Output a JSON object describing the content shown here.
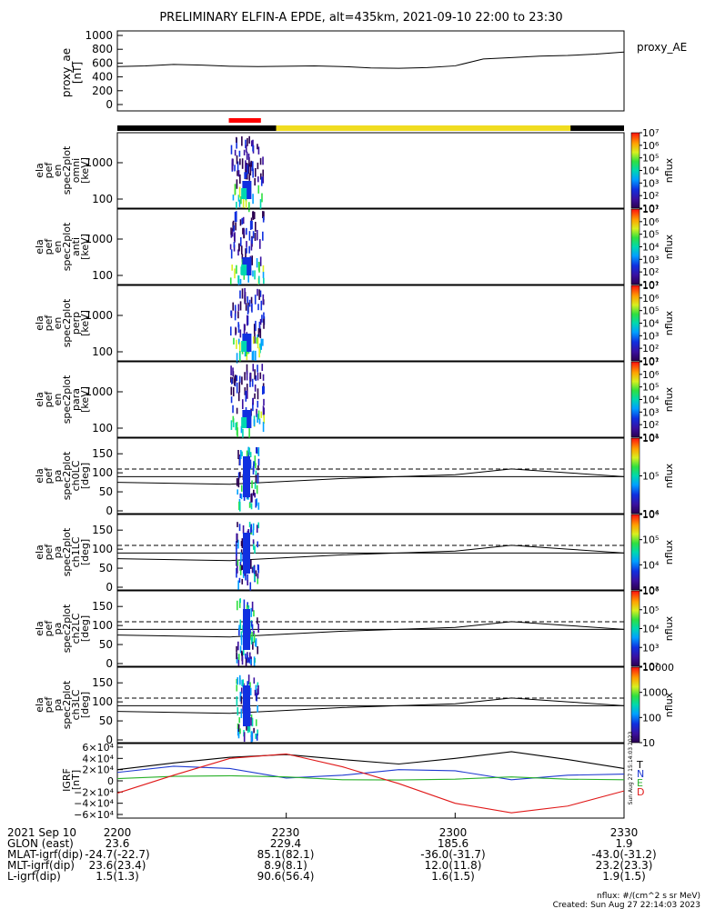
{
  "title": "PRELIMINARY ELFIN-A EPDE, alt=435km, 2021-09-10 22:00 to 23:30",
  "bars": {
    "marker_color": "#ff0000",
    "science_color": "#f0dc20",
    "background_color": "#000000"
  },
  "ae_panel": {
    "ylabel": [
      "proxy_ae",
      "[nT]"
    ],
    "series_name": "proxy_AE",
    "ylim": [
      0,
      1000
    ],
    "ticks": [
      "0",
      "200",
      "400",
      "600",
      "800",
      "1000"
    ]
  },
  "spec_panels": [
    {
      "ylabel": [
        "ela",
        "pef",
        "en",
        "spec2plot",
        "omni",
        "[keV]"
      ],
      "ticks": [
        "100",
        "1000"
      ],
      "cbar_ticks": [
        "10¹",
        "10²",
        "10³",
        "10⁴",
        "10⁵",
        "10⁶",
        "10⁷"
      ],
      "cbar_label": "nflux"
    },
    {
      "ylabel": [
        "ela",
        "pef",
        "en",
        "spec2plot",
        "anti",
        "[keV]"
      ],
      "ticks": [
        "100",
        "1000"
      ],
      "cbar_ticks": [
        "10¹",
        "10²",
        "10³",
        "10⁴",
        "10⁵",
        "10⁶",
        "10⁷"
      ],
      "cbar_label": "nflux"
    },
    {
      "ylabel": [
        "ela",
        "pef",
        "en",
        "spec2plot",
        "perp",
        "[keV]"
      ],
      "ticks": [
        "100",
        "1000"
      ],
      "cbar_ticks": [
        "10¹",
        "10²",
        "10³",
        "10⁴",
        "10⁵",
        "10⁶",
        "10⁷"
      ],
      "cbar_label": "nflux"
    },
    {
      "ylabel": [
        "ela",
        "pef",
        "en",
        "spec2plot",
        "para",
        "[keV]"
      ],
      "ticks": [
        "100",
        "1000"
      ],
      "cbar_ticks": [
        "10¹",
        "10²",
        "10³",
        "10⁴",
        "10⁵",
        "10⁶",
        "10⁷"
      ],
      "cbar_label": "nflux"
    }
  ],
  "pa_panels": [
    {
      "ylabel": [
        "ela",
        "pef",
        "pa",
        "spec2plot",
        "ch0LC",
        "[deg]"
      ],
      "ticks": [
        "0",
        "50",
        "100",
        "150"
      ],
      "cbar_ticks": [
        "10⁴",
        "10⁵",
        "10⁶"
      ],
      "cbar_label": "nflux"
    },
    {
      "ylabel": [
        "ela",
        "pef",
        "pa",
        "spec2plot",
        "ch1LC",
        "[deg]"
      ],
      "ticks": [
        "0",
        "50",
        "100",
        "150"
      ],
      "cbar_ticks": [
        "10³",
        "10⁴",
        "10⁵",
        "10⁶"
      ],
      "cbar_label": "nflux"
    },
    {
      "ylabel": [
        "ela",
        "pef",
        "pa",
        "spec2plot",
        "ch2LC",
        "[deg]"
      ],
      "ticks": [
        "0",
        "50",
        "100",
        "150"
      ],
      "cbar_ticks": [
        "10²",
        "10³",
        "10⁴",
        "10⁵",
        "10⁶"
      ],
      "cbar_label": "nflux"
    },
    {
      "ylabel": [
        "ela",
        "pef",
        "pa",
        "spec2plot",
        "ch3LC",
        "[deg]"
      ],
      "ticks": [
        "0",
        "50",
        "100",
        "150"
      ],
      "cbar_ticks": [
        "10",
        "100",
        "1000",
        "10000"
      ],
      "cbar_label": "nflux"
    }
  ],
  "bfield_panel": {
    "ylabel": [
      "IGRF",
      "[nT]"
    ],
    "ticks": [
      "−6×10⁴",
      "−4×10⁴",
      "−2×10⁴",
      "0",
      "2×10⁴",
      "4×10⁴",
      "6×10⁴"
    ],
    "legend": [
      {
        "label": "T",
        "color": "#000000"
      },
      {
        "label": "N",
        "color": "#1f3ad0"
      },
      {
        "label": "E",
        "color": "#28b028"
      },
      {
        "label": "D",
        "color": "#e01818"
      }
    ],
    "side_stamp": "Sun Aug 27 15:14:03 2023"
  },
  "chart_data": {
    "type": "line",
    "title": "PRELIMINARY ELFIN-A EPDE, alt=435km, 2021-09-10 22:00 to 23:30",
    "x_ticks": [
      "2200",
      "2230",
      "2300",
      "2330"
    ],
    "x_minutes": [
      0,
      30,
      60,
      90
    ],
    "proxy_ae": {
      "name": "proxy_AE",
      "x_minutes": [
        0,
        5,
        10,
        15,
        20,
        25,
        30,
        35,
        40,
        45,
        50,
        55,
        60,
        65,
        70,
        75,
        80,
        85,
        90
      ],
      "y_nT": [
        550,
        560,
        580,
        570,
        555,
        550,
        555,
        560,
        550,
        530,
        525,
        535,
        560,
        660,
        680,
        700,
        710,
        730,
        760
      ]
    },
    "pa_reference_lines_deg": {
      "dashed": 110,
      "solid": 90
    },
    "bfield": {
      "x_minutes": [
        0,
        10,
        20,
        30,
        40,
        50,
        60,
        70,
        80,
        90
      ],
      "T": [
        20000,
        32000,
        42000,
        47000,
        38000,
        30000,
        40000,
        52000,
        38000,
        22000
      ],
      "N": [
        15000,
        26000,
        22000,
        5000,
        10000,
        20000,
        18000,
        2000,
        10000,
        12000
      ],
      "E": [
        4000,
        8000,
        9000,
        7000,
        2000,
        1500,
        3000,
        7000,
        3000,
        2000
      ],
      "D": [
        -22000,
        10000,
        40000,
        48000,
        25000,
        -5000,
        -40000,
        -57000,
        -45000,
        -18000
      ]
    }
  },
  "footer": {
    "rows": [
      {
        "label": "2021 Sep 10",
        "values": [
          "2200",
          "2230",
          "2300",
          "2330"
        ]
      },
      {
        "label": "GLON (east)",
        "values": [
          "23.6",
          "229.4",
          "185.6",
          "1.9"
        ]
      },
      {
        "label": "MLAT-igrf(dip)",
        "values": [
          "-24.7(-22.7)",
          "85.1(82.1)",
          "-36.0(-31.7)",
          "-43.0(-31.2)"
        ]
      },
      {
        "label": "MLT-igrf(dip)",
        "values": [
          "23.6(23.4)",
          "8.9(8.1)",
          "12.0(11.8)",
          "23.2(23.3)"
        ]
      },
      {
        "label": "L-igrf(dip)",
        "values": [
          "1.5(1.3)",
          "90.6(56.4)",
          "1.6(1.5)",
          "1.9(1.5)"
        ]
      }
    ],
    "units_note": "nflux: #/(cm^2 s sr MeV)",
    "created": "Created: Sun Aug 27 22:14:03 2023"
  }
}
